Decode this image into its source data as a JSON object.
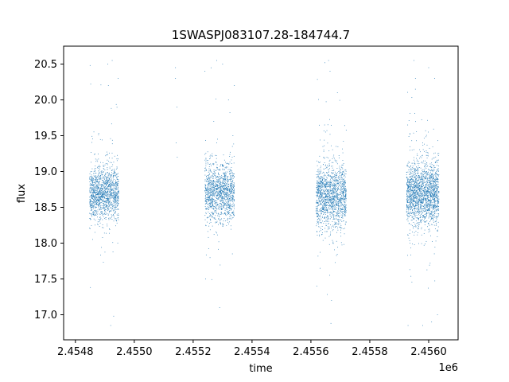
{
  "chart_data": {
    "type": "scatter",
    "title": "1SWASPJ083107.28-184744.7",
    "xlabel": "time",
    "ylabel": "flux",
    "x_offset_label": "1e6",
    "xlim": [
      2.45476,
      2.4561
    ],
    "ylim": [
      16.65,
      20.75
    ],
    "x_ticks": [
      2.4548,
      2.455,
      2.4552,
      2.4554,
      2.4556,
      2.4558,
      2.456
    ],
    "x_tick_labels": [
      "2.4548",
      "2.4550",
      "2.4552",
      "2.4554",
      "2.4556",
      "2.4558",
      "2.4560"
    ],
    "y_ticks": [
      17.0,
      17.5,
      18.0,
      18.5,
      19.0,
      19.5,
      20.0,
      20.5
    ],
    "y_tick_labels": [
      "17.0",
      "17.5",
      "18.0",
      "18.5",
      "19.0",
      "19.5",
      "20.0",
      "20.5"
    ],
    "grid": false,
    "marker_color": "#1f77b4",
    "series": [
      {
        "clusters": [
          {
            "x_range": [
              2.454848,
              2.454947
            ],
            "center": 18.7,
            "spread": 0.18,
            "n": 1400
          },
          {
            "x_range": [
              2.45524,
              2.45534
            ],
            "center": 18.7,
            "spread": 0.2,
            "n": 1300
          },
          {
            "x_range": [
              2.455618,
              2.45572
            ],
            "center": 18.65,
            "spread": 0.22,
            "n": 1500
          },
          {
            "x_range": [
              2.455925,
              2.456035
            ],
            "center": 18.7,
            "spread": 0.22,
            "n": 1900
          }
        ],
        "outliers": [
          {
            "x": 2.45485,
            "y": 20.48
          },
          {
            "x": 2.454852,
            "y": 20.22
          },
          {
            "x": 2.454851,
            "y": 17.38
          },
          {
            "x": 2.45491,
            "y": 20.5
          },
          {
            "x": 2.454912,
            "y": 20.2
          },
          {
            "x": 2.454925,
            "y": 20.55
          },
          {
            "x": 2.45492,
            "y": 16.85
          },
          {
            "x": 2.45493,
            "y": 16.98
          },
          {
            "x": 2.454945,
            "y": 20.3
          },
          {
            "x": 2.45514,
            "y": 20.45
          },
          {
            "x": 2.45514,
            "y": 20.3
          },
          {
            "x": 2.455145,
            "y": 19.9
          },
          {
            "x": 2.455142,
            "y": 19.4
          },
          {
            "x": 2.455146,
            "y": 19.2
          },
          {
            "x": 2.45524,
            "y": 20.4
          },
          {
            "x": 2.455242,
            "y": 17.5
          },
          {
            "x": 2.45528,
            "y": 20.55
          },
          {
            "x": 2.4553,
            "y": 20.5
          },
          {
            "x": 2.45529,
            "y": 17.1
          },
          {
            "x": 2.45532,
            "y": 20.0
          },
          {
            "x": 2.45534,
            "y": 20.2
          },
          {
            "x": 2.455335,
            "y": 19.5
          },
          {
            "x": 2.45562,
            "y": 17.4
          },
          {
            "x": 2.45566,
            "y": 20.55
          },
          {
            "x": 2.455665,
            "y": 20.4
          },
          {
            "x": 2.455668,
            "y": 16.88
          },
          {
            "x": 2.45567,
            "y": 17.2
          },
          {
            "x": 2.45569,
            "y": 20.1
          },
          {
            "x": 2.45593,
            "y": 16.85
          },
          {
            "x": 2.45595,
            "y": 20.55
          },
          {
            "x": 2.455955,
            "y": 20.3
          },
          {
            "x": 2.45598,
            "y": 16.85
          },
          {
            "x": 2.456,
            "y": 20.45
          },
          {
            "x": 2.45601,
            "y": 16.9
          },
          {
            "x": 2.45602,
            "y": 20.3
          },
          {
            "x": 2.45603,
            "y": 17.0
          }
        ]
      }
    ]
  }
}
